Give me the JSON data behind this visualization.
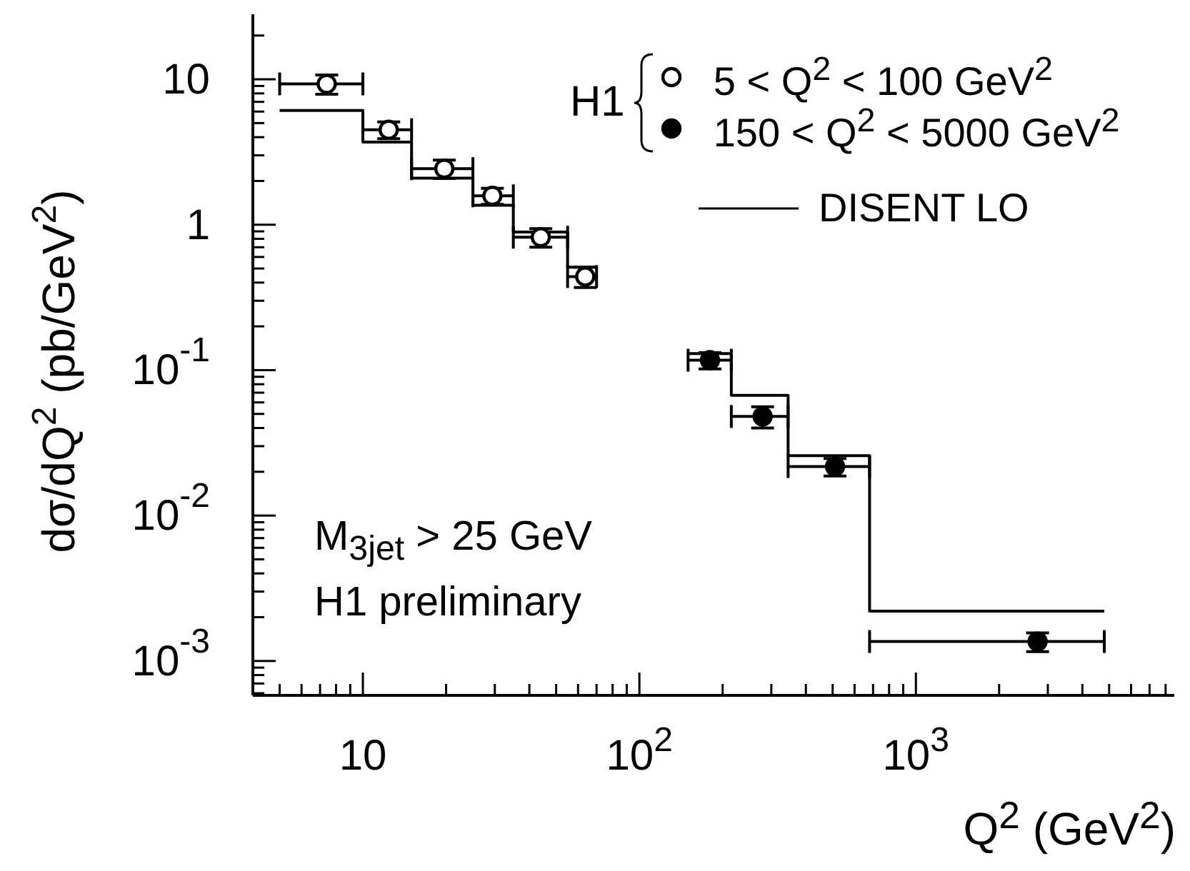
{
  "chart_data": {
    "type": "scatter",
    "xlabel": "Q$^{2}$ (GeV$^{2}$)",
    "ylabel": "dσ/dQ$^{2}$ (pb/GeV$^{2}$)",
    "legend_title": "H1",
    "legend": "top right",
    "log": "xy",
    "annotations": [
      "M$_{3jet}$ > 25 GeV",
      "H1 preliminary"
    ],
    "xlim": [
      4,
      8600
    ],
    "ylim": [
      0.00058,
      28
    ],
    "xticks": [
      {
        "value": 4,
        "label": null
      },
      {
        "value": 5,
        "label": null
      },
      {
        "value": 6,
        "label": null
      },
      {
        "value": 7,
        "label": null
      },
      {
        "value": 8,
        "label": null
      },
      {
        "value": 9,
        "label": null
      },
      10,
      {
        "value": 20,
        "label": null
      },
      {
        "value": 30,
        "label": null
      },
      {
        "value": 40,
        "label": null
      },
      {
        "value": 50,
        "label": null
      },
      {
        "value": 60,
        "label": null
      },
      {
        "value": 70,
        "label": null
      },
      {
        "value": 80,
        "label": null
      },
      {
        "value": 90,
        "label": null
      },
      {
        "value": 100,
        "label": "10$^{2}$"
      },
      {
        "value": 200,
        "label": null
      },
      {
        "value": 300,
        "label": null
      },
      {
        "value": 400,
        "label": null
      },
      {
        "value": 500,
        "label": null
      },
      {
        "value": 600,
        "label": null
      },
      {
        "value": 700,
        "label": null
      },
      {
        "value": 800,
        "label": null
      },
      {
        "value": 900,
        "label": null
      },
      {
        "value": 1000,
        "label": "10$^{3}$"
      },
      {
        "value": 2000,
        "label": null
      },
      {
        "value": 3000,
        "label": null
      },
      {
        "value": 4000,
        "label": null
      },
      {
        "value": 5000,
        "label": null
      },
      {
        "value": 6000,
        "label": null
      },
      {
        "value": 7000,
        "label": null
      },
      {
        "value": 8000,
        "label": null
      }
    ],
    "yticks": [
      {
        "value": 0.0006,
        "label": null
      },
      {
        "value": 0.0007,
        "label": null
      },
      {
        "value": 0.0008,
        "label": null
      },
      {
        "value": 0.0009,
        "label": null
      },
      {
        "value": 0.001,
        "label": "10$^{-3}$"
      },
      {
        "value": 0.002,
        "label": null
      },
      {
        "value": 0.003,
        "label": null
      },
      {
        "value": 0.004,
        "label": null
      },
      {
        "value": 0.005,
        "label": null
      },
      {
        "value": 0.006,
        "label": null
      },
      {
        "value": 0.007,
        "label": null
      },
      {
        "value": 0.008,
        "label": null
      },
      {
        "value": 0.009,
        "label": null
      },
      {
        "value": 0.01,
        "label": "10$^{-2}$"
      },
      {
        "value": 0.02,
        "label": null
      },
      {
        "value": 0.03,
        "label": null
      },
      {
        "value": 0.04,
        "label": null
      },
      {
        "value": 0.05,
        "label": null
      },
      {
        "value": 0.06,
        "label": null
      },
      {
        "value": 0.07,
        "label": null
      },
      {
        "value": 0.08,
        "label": null
      },
      {
        "value": 0.09,
        "label": null
      },
      {
        "value": 0.1,
        "label": "10$^{-1}$"
      },
      {
        "value": 0.2,
        "label": null
      },
      {
        "value": 0.3,
        "label": null
      },
      {
        "value": 0.4,
        "label": null
      },
      {
        "value": 0.5,
        "label": null
      },
      {
        "value": 0.6,
        "label": null
      },
      {
        "value": 0.7,
        "label": null
      },
      {
        "value": 0.8,
        "label": null
      },
      {
        "value": 0.9,
        "label": null
      },
      1,
      {
        "value": 2,
        "label": null
      },
      {
        "value": 3,
        "label": null
      },
      {
        "value": 4,
        "label": null
      },
      {
        "value": 5,
        "label": null
      },
      {
        "value": 6,
        "label": null
      },
      {
        "value": 7,
        "label": null
      },
      {
        "value": 8,
        "label": null
      },
      {
        "value": 9,
        "label": null
      },
      10,
      {
        "value": 20,
        "label": null
      }
    ],
    "series": [
      {
        "name": "5 < Q$^{2}$ < 100 GeV$^{2}$",
        "marker": "circle",
        "color": "#ffffff",
        "x": [
          7.4,
          12.4,
          19.7,
          29.4,
          44,
          63.7
        ],
        "values": [
          9.3,
          4.5,
          2.43,
          1.58,
          0.82,
          0.44
        ],
        "errors": [
          1.4,
          0.6,
          0.35,
          0.2,
          0.12,
          0.07
        ],
        "xerrors": [
          [
            5,
            10
          ],
          [
            10,
            15
          ],
          [
            15,
            25
          ],
          [
            25,
            35
          ],
          [
            35,
            55
          ],
          [
            55,
            70
          ]
        ]
      },
      {
        "name": "150 < Q$^{2}$ < 5000 GeV$^{2}$",
        "marker": "circle",
        "color": "#000000",
        "x": [
          180,
          279,
          510,
          2755
        ],
        "values": [
          0.117,
          0.048,
          0.0217,
          0.00136
        ],
        "errors": [
          0.015,
          0.008,
          0.003,
          0.0002
        ],
        "xerrors": [
          [
            150,
            215
          ],
          [
            215,
            345
          ],
          [
            345,
            680
          ],
          [
            680,
            4800
          ]
        ]
      },
      {
        "name": "DISENT LO",
        "type": "step",
        "color": "#000000",
        "x": [
          5,
          10,
          15,
          25,
          35,
          55,
          70,
          100,
          150,
          215,
          345,
          680,
          4800
        ],
        "values": [
          6.1,
          3.7,
          2.09,
          1.36,
          0.89,
          0.51,
          0.51,
          null,
          0.13,
          0.067,
          0.0258,
          0.0022,
          0.0022
        ]
      }
    ]
  }
}
